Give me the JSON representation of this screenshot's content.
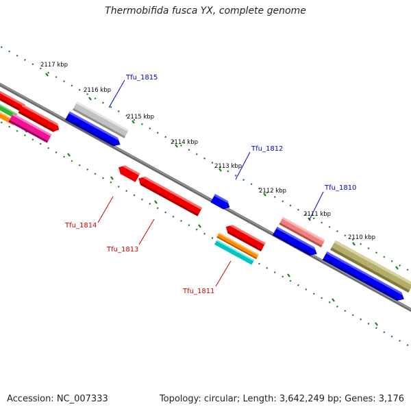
{
  "title": "Thermobifida fusca YX, complete genome",
  "footer": {
    "accession": "Accession: NC_007333",
    "summary": "Topology: circular; Length: 3,642,249 bp; Genes: 3,176"
  },
  "ticks": [
    "2117 kbp",
    "2116 kbp",
    "2115 kbp",
    "2114 kbp",
    "2113 kbp",
    "2112 kbp",
    "2111 kbp",
    "2110 kbp"
  ],
  "gene_labels": {
    "forward": [
      "Tfu_1815",
      "Tfu_1812",
      "Tfu_1810"
    ],
    "reverse": [
      "Tfu_1814",
      "Tfu_1813",
      "Tfu_1811"
    ]
  },
  "colors": {
    "backbone": "#7a7a7a",
    "tick": "#1a7a1a",
    "forward_label": "#0000cc",
    "reverse_label": "#cc0000"
  }
}
